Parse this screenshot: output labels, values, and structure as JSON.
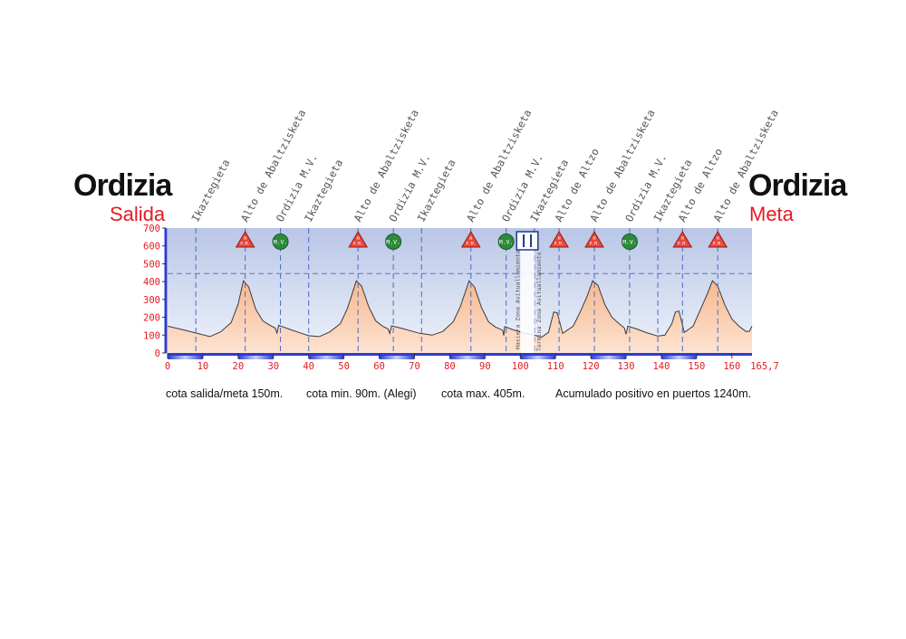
{
  "start": {
    "city": "Ordizia",
    "label": "Salida"
  },
  "finish": {
    "city": "Ordizia",
    "label": "Meta"
  },
  "stats": [
    "cota salida/meta 150m.",
    "cota min. 90m. (Alegi)",
    "cota max. 405m.",
    "Acumulado positivo en puertos 1240m."
  ],
  "colors": {
    "red": "#e31b23",
    "climb_marker": "#e8473c",
    "sprint_marker": "#2d8a3a",
    "feed_marker": "#1e3a8a",
    "profile_fill": "#f6b88f",
    "sky_top": "#b9c6e6",
    "sky_bottom": "#eef2fa"
  },
  "chart_data": {
    "type": "area",
    "title": "",
    "xlabel": "",
    "ylabel": "",
    "xlim": [
      0,
      165.7
    ],
    "ylim": [
      0,
      700
    ],
    "y_ticks": [
      0,
      100,
      200,
      300,
      400,
      500,
      600,
      700
    ],
    "x_ticks": [
      0,
      10,
      20,
      30,
      40,
      50,
      60,
      70,
      80,
      90,
      100,
      110,
      120,
      130,
      140,
      150,
      160
    ],
    "x_tick_labels": [
      "0",
      "10",
      "20",
      "30",
      "40",
      "50",
      "60",
      "70",
      "80",
      "90",
      "100",
      "110",
      "120",
      "130",
      "140",
      "150",
      "160"
    ],
    "x_end_label": "165,7",
    "reference_line_y": 445,
    "profile": [
      [
        0,
        150
      ],
      [
        4,
        132
      ],
      [
        8,
        112
      ],
      [
        12,
        92
      ],
      [
        15,
        118
      ],
      [
        18,
        170
      ],
      [
        20,
        275
      ],
      [
        21.5,
        405
      ],
      [
        23,
        370
      ],
      [
        25,
        245
      ],
      [
        27,
        180
      ],
      [
        29,
        155
      ],
      [
        30.5,
        140
      ],
      [
        31,
        112
      ],
      [
        31.5,
        155
      ],
      [
        35,
        130
      ],
      [
        38,
        110
      ],
      [
        40,
        97
      ],
      [
        43,
        92
      ],
      [
        46,
        118
      ],
      [
        49,
        165
      ],
      [
        51,
        250
      ],
      [
        53.5,
        405
      ],
      [
        55,
        375
      ],
      [
        57,
        260
      ],
      [
        59,
        180
      ],
      [
        61,
        150
      ],
      [
        62.5,
        135
      ],
      [
        63,
        110
      ],
      [
        63.5,
        152
      ],
      [
        67,
        135
      ],
      [
        70,
        118
      ],
      [
        71.5,
        110
      ],
      [
        75,
        100
      ],
      [
        78,
        120
      ],
      [
        81,
        175
      ],
      [
        83,
        260
      ],
      [
        85.5,
        405
      ],
      [
        87,
        370
      ],
      [
        89,
        255
      ],
      [
        91,
        175
      ],
      [
        93,
        145
      ],
      [
        95,
        128
      ],
      [
        95.3,
        98
      ],
      [
        95.6,
        148
      ],
      [
        98,
        130
      ],
      [
        101,
        112
      ],
      [
        104,
        100
      ],
      [
        106,
        88
      ],
      [
        108,
        115
      ],
      [
        109.5,
        230
      ],
      [
        110.5,
        225
      ],
      [
        112,
        110
      ],
      [
        115,
        150
      ],
      [
        117,
        230
      ],
      [
        119,
        320
      ],
      [
        120.5,
        405
      ],
      [
        122,
        380
      ],
      [
        124,
        270
      ],
      [
        126,
        200
      ],
      [
        128,
        165
      ],
      [
        129.5,
        140
      ],
      [
        130,
        105
      ],
      [
        130.5,
        150
      ],
      [
        133,
        135
      ],
      [
        136,
        112
      ],
      [
        139,
        95
      ],
      [
        141,
        100
      ],
      [
        143,
        165
      ],
      [
        144,
        230
      ],
      [
        145,
        235
      ],
      [
        146.5,
        115
      ],
      [
        149,
        150
      ],
      [
        151,
        240
      ],
      [
        153,
        330
      ],
      [
        154.5,
        405
      ],
      [
        156,
        375
      ],
      [
        158,
        270
      ],
      [
        160,
        190
      ],
      [
        162,
        150
      ],
      [
        164,
        120
      ],
      [
        165,
        122
      ],
      [
        165.7,
        150
      ]
    ],
    "points_of_interest": [
      {
        "km": 8,
        "name": "Ikaztegieta",
        "type": "place"
      },
      {
        "km": 22,
        "name": "Alto de Abaltzisketa",
        "type": "climb"
      },
      {
        "km": 32,
        "name": "Ordizia M.V.",
        "type": "sprint"
      },
      {
        "km": 40,
        "name": "Ikaztegieta",
        "type": "place"
      },
      {
        "km": 54,
        "name": "Alto de Abaltzisketa",
        "type": "climb"
      },
      {
        "km": 64,
        "name": "Ordizia M.V.",
        "type": "sprint"
      },
      {
        "km": 72,
        "name": "Ikaztegieta",
        "type": "place"
      },
      {
        "km": 86,
        "name": "Alto de Abaltzisketa",
        "type": "climb"
      },
      {
        "km": 96,
        "name": "Ordizia M.V.",
        "type": "sprint"
      },
      {
        "km": 104,
        "name": "Ikaztegieta",
        "type": "place"
      },
      {
        "km": 111,
        "name": "Alto de Altzo",
        "type": "climb"
      },
      {
        "km": 121,
        "name": "Alto de Abaltzisketa",
        "type": "climb"
      },
      {
        "km": 131,
        "name": "Ordizia M.V.",
        "type": "sprint"
      },
      {
        "km": 139,
        "name": "Ikaztegieta",
        "type": "place"
      },
      {
        "km": 146,
        "name": "Alto de Altzo",
        "type": "climb"
      },
      {
        "km": 156,
        "name": "Alto de Abaltzisketa",
        "type": "climb"
      }
    ],
    "climb_marker_label": "M\nP.M.",
    "sprint_marker_label": "M.V.",
    "feed_zone": {
      "start_km": 100,
      "end_km": 104,
      "start_label": "Hasiera Zona Avituallamiento",
      "end_label": "Termina Zona Avituallamiento"
    }
  }
}
